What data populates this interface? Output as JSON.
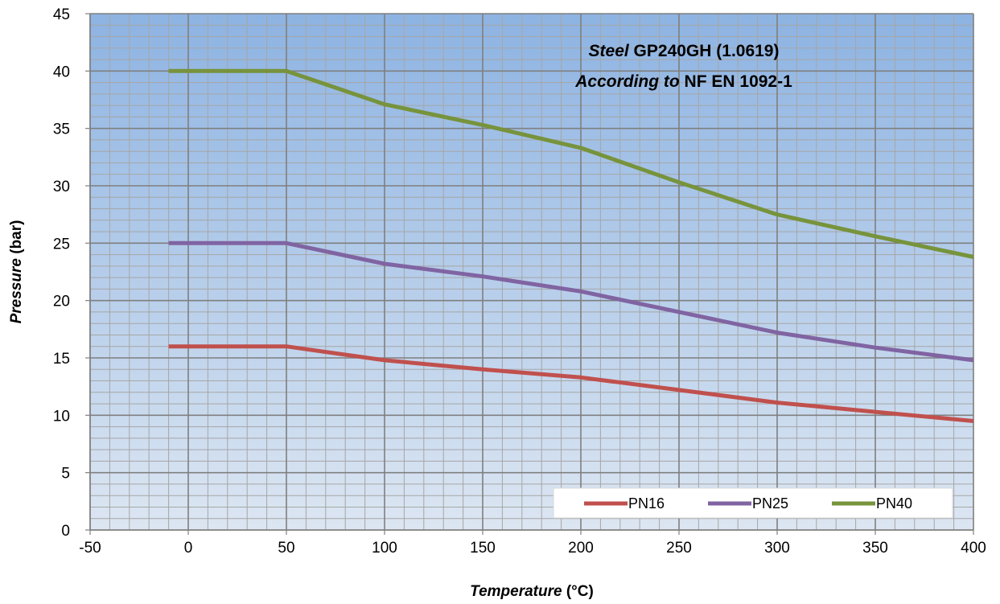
{
  "chart_data": {
    "type": "line",
    "annotation": {
      "line1": {
        "italic": "Steel",
        "normal": " GP240GH (1.0619)"
      },
      "line2": {
        "italic": "According to",
        "normal": " NF EN 1092-1"
      }
    },
    "xlabel": {
      "italic": "Temperature",
      "normal": " (°C)"
    },
    "ylabel": {
      "italic": "Pressure",
      "normal": " (bar)"
    },
    "xlim": [
      -50,
      400
    ],
    "ylim": [
      0,
      45
    ],
    "xticks": [
      -50,
      0,
      50,
      100,
      150,
      200,
      250,
      300,
      350,
      400
    ],
    "yticks": [
      0,
      5,
      10,
      15,
      20,
      25,
      30,
      35,
      40,
      45
    ],
    "grid": true,
    "legend_position": "bottom-right",
    "series": [
      {
        "name": "PN16",
        "color": "#c0504d",
        "x": [
          -10,
          50,
          100,
          150,
          200,
          250,
          300,
          350,
          400
        ],
        "y": [
          16,
          16,
          14.8,
          14,
          13.3,
          12.2,
          11.1,
          10.3,
          9.5
        ]
      },
      {
        "name": "PN25",
        "color": "#8064a2",
        "x": [
          -10,
          50,
          100,
          150,
          200,
          250,
          300,
          350,
          400
        ],
        "y": [
          25,
          25,
          23.2,
          22.1,
          20.8,
          19,
          17.2,
          15.9,
          14.8
        ]
      },
      {
        "name": "PN40",
        "color": "#77933c",
        "x": [
          -10,
          50,
          100,
          150,
          200,
          250,
          300,
          350,
          400
        ],
        "y": [
          40,
          40,
          37.1,
          35.3,
          33.3,
          30.3,
          27.5,
          25.6,
          23.8
        ]
      }
    ]
  }
}
